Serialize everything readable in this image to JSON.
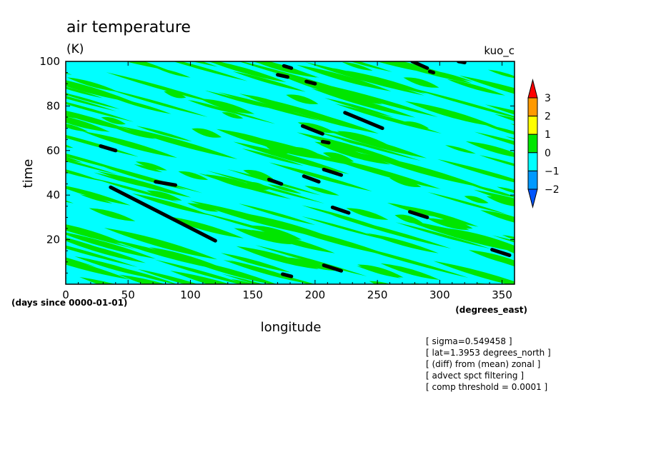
{
  "chart_data": {
    "type": "heatmap",
    "title": "air temperature",
    "units": "(K)",
    "subtitle_right": "kuo_c",
    "xlabel": "longitude",
    "xunits": "(degrees_east)",
    "ylabel": "time",
    "yunits": "(days since 0000-01-01)",
    "xlim": [
      0,
      360
    ],
    "ylim": [
      0,
      100
    ],
    "xticks": [
      "0",
      "50",
      "100",
      "150",
      "200",
      "250",
      "300",
      "350"
    ],
    "xtick_values": [
      0,
      50,
      100,
      150,
      200,
      250,
      300,
      350
    ],
    "yticks": [
      "20",
      "40",
      "60",
      "80",
      "100"
    ],
    "ytick_values": [
      20,
      40,
      60,
      80,
      100
    ],
    "colorbar": {
      "levels": [
        "3",
        "2",
        "1",
        "0",
        "−1",
        "−2"
      ],
      "bands": [
        {
          "range": [
            2,
            3
          ],
          "color": "#ff9900"
        },
        {
          "range": [
            1,
            2
          ],
          "color": "#ffff00"
        },
        {
          "range": [
            0,
            1
          ],
          "color": "#00e600"
        },
        {
          "range": [
            -1,
            0
          ],
          "color": "#00ffff"
        },
        {
          "range": [
            -2,
            -1
          ],
          "color": "#0099ff"
        }
      ],
      "over_color": "#ff0000",
      "under_color": "#0055ff"
    },
    "dominant_colors": {
      "negative": "#00ffff",
      "positive": "#00e600",
      "extreme": "#000000"
    },
    "annotations": [
      "[ sigma=0.549458 ]",
      "[ lat=1.3953 degrees_north ]",
      "[ (diff) from (mean) zonal ]",
      "[ advect spct filtering ]",
      "[ comp threshold = 0.0001 ]"
    ],
    "black_streaks": [
      {
        "lon": [
          28,
          40
        ],
        "time": [
          62,
          60
        ]
      },
      {
        "lon": [
          36,
          120
        ],
        "time": [
          43.5,
          19.5
        ]
      },
      {
        "lon": [
          72,
          88
        ],
        "time": [
          46,
          44.5
        ]
      },
      {
        "lon": [
          163,
          173
        ],
        "time": [
          47,
          45
        ]
      },
      {
        "lon": [
          170,
          178
        ],
        "time": [
          94,
          93
        ]
      },
      {
        "lon": [
          175,
          181
        ],
        "time": [
          98,
          97
        ]
      },
      {
        "lon": [
          193,
          200
        ],
        "time": [
          91,
          90
        ]
      },
      {
        "lon": [
          190,
          206
        ],
        "time": [
          71,
          67.5
        ]
      },
      {
        "lon": [
          191,
          203
        ],
        "time": [
          48.5,
          46
        ]
      },
      {
        "lon": [
          206,
          211
        ],
        "time": [
          64,
          63.5
        ]
      },
      {
        "lon": [
          207,
          221
        ],
        "time": [
          51.5,
          49
        ]
      },
      {
        "lon": [
          214,
          227
        ],
        "time": [
          34.5,
          32
        ]
      },
      {
        "lon": [
          207,
          221
        ],
        "time": [
          8.5,
          6
        ]
      },
      {
        "lon": [
          174,
          181
        ],
        "time": [
          4.5,
          3.5
        ]
      },
      {
        "lon": [
          224,
          254
        ],
        "time": [
          77,
          70
        ]
      },
      {
        "lon": [
          276,
          290
        ],
        "time": [
          32.5,
          30
        ]
      },
      {
        "lon": [
          278,
          290
        ],
        "time": [
          100,
          97
        ]
      },
      {
        "lon": [
          292,
          295
        ],
        "time": [
          95.5,
          95
        ]
      },
      {
        "lon": [
          315,
          320
        ],
        "time": [
          100,
          99.5
        ]
      },
      {
        "lon": [
          342,
          356
        ],
        "time": [
          15.5,
          13
        ]
      }
    ]
  }
}
